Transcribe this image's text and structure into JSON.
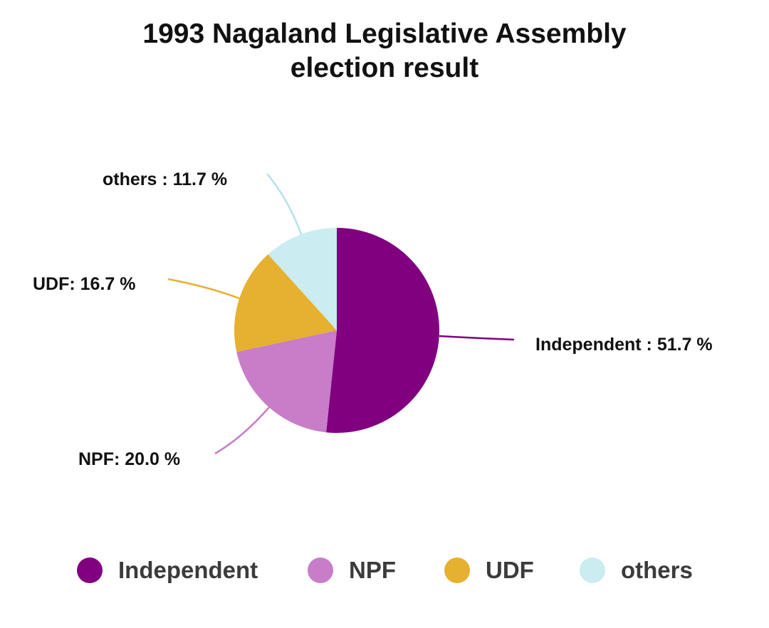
{
  "chart_data": {
    "type": "pie",
    "title": "1993 Nagaland Legislative Assembly election result",
    "title_lines": [
      "1993 Nagaland Legislative Assembly",
      "election result"
    ],
    "legend_position": "bottom",
    "slices": [
      {
        "name": "Independent",
        "value": 51.7,
        "label": "Independent : 51.7 %",
        "color": "#800080"
      },
      {
        "name": "NPF",
        "value": 20.0,
        "label": "NPF: 20.0 %",
        "color": "#c77dc7"
      },
      {
        "name": "UDF",
        "value": 16.7,
        "label": "UDF: 16.7 %",
        "color": "#e6b030"
      },
      {
        "name": "others",
        "value": 11.7,
        "label": "others : 11.7 %",
        "color": "#cbecf1"
      }
    ]
  }
}
